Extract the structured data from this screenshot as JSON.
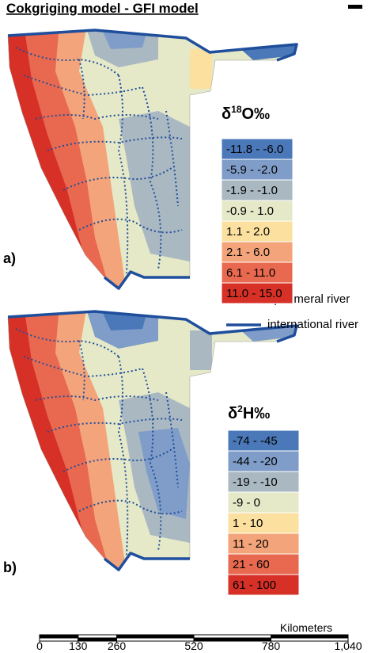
{
  "title": "Cokgriging model - GFI model",
  "panels": [
    {
      "label": "a)",
      "legend_title": {
        "symbol": "δ",
        "superscript": "18",
        "rest": "O‰"
      },
      "classes": [
        {
          "label": "-11.8 - -6.0",
          "color": "#4a78b8"
        },
        {
          "label": "-5.9 - -2.0",
          "color": "#7f9dc8"
        },
        {
          "label": "-1.9 - -1.0",
          "color": "#aab8c2"
        },
        {
          "label": "-0.9 - 1.0",
          "color": "#e5e9c8"
        },
        {
          "label": "1.1 - 2.0",
          "color": "#fbe0a0"
        },
        {
          "label": "2.1 - 6.0",
          "color": "#f4a47a"
        },
        {
          "label": "6.1 - 11.0",
          "color": "#e8694f"
        },
        {
          "label": "11.0 - 15.0",
          "color": "#d73027"
        }
      ]
    },
    {
      "label": "b)",
      "legend_title": {
        "symbol": "δ",
        "superscript": "2",
        "rest": "H‰"
      },
      "classes": [
        {
          "label": "-74 - -45",
          "color": "#4a78b8"
        },
        {
          "label": "-44 - -20",
          "color": "#7f9dc8"
        },
        {
          "label": "-19 - -10",
          "color": "#aab8c2"
        },
        {
          "label": "-9 - 0",
          "color": "#e5e9c8"
        },
        {
          "label": "1 - 10",
          "color": "#fbe0a0"
        },
        {
          "label": "11 - 20",
          "color": "#f4a47a"
        },
        {
          "label": "21 - 60",
          "color": "#e8694f"
        },
        {
          "label": "61 - 100",
          "color": "#d73027"
        }
      ]
    }
  ],
  "line_legend": [
    "ephemeral river",
    "international river"
  ],
  "scale_bar": {
    "unit": "Kilometers",
    "ticks": [
      0,
      130,
      260,
      520,
      780,
      {
        "value": 1040,
        "label": "1,040"
      }
    ]
  }
}
